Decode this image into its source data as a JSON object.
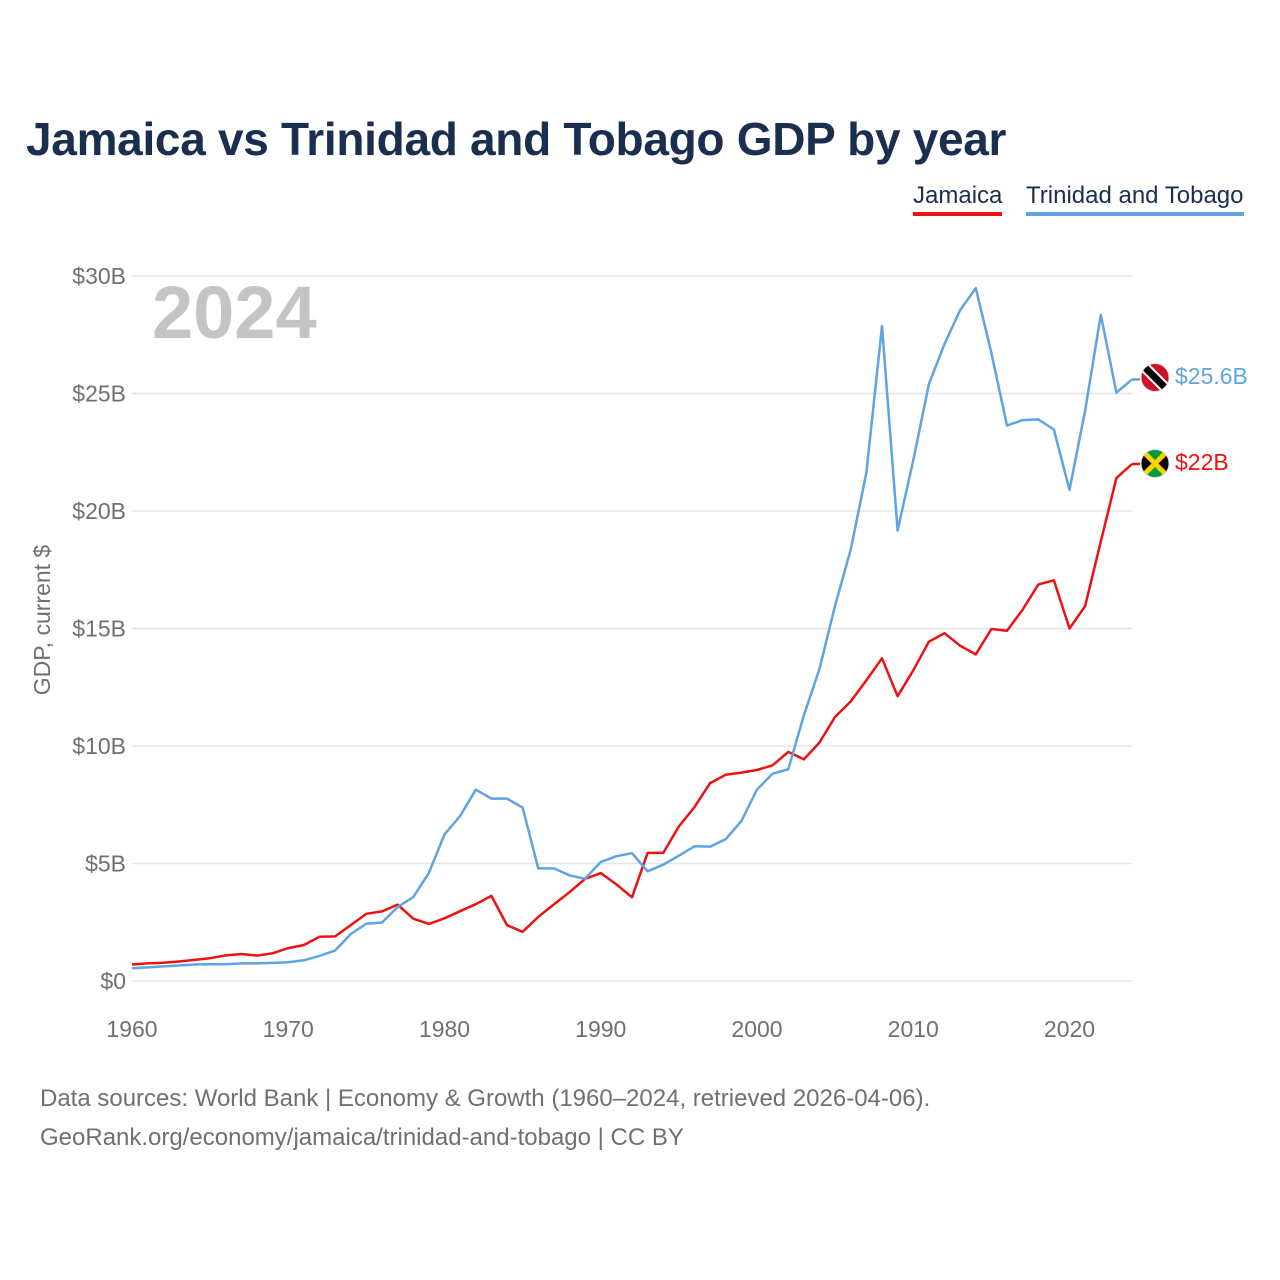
{
  "title": "Jamaica vs Trinidad and Tobago GDP by year",
  "legend": {
    "jamaica": "Jamaica",
    "trinidad": "Trinidad and Tobago"
  },
  "source": {
    "line1": "Data sources: World Bank | Economy & Growth (1960–2024, retrieved 2026-04-06).",
    "line2": "GeoRank.org/economy/jamaica/trinidad-and-tobago | CC BY"
  },
  "chart_data": {
    "type": "line",
    "title": "Jamaica vs Trinidad and Tobago GDP by year",
    "ylabel": "GDP, current $",
    "xlabel": "",
    "xlim": [
      1960,
      2024
    ],
    "ylim": [
      0,
      30
    ],
    "year_label": "2024",
    "x_ticks": [
      1960,
      1970,
      1980,
      1990,
      2000,
      2010,
      2020
    ],
    "x_tick_labels": [
      "1960",
      "1970",
      "1980",
      "1990",
      "2000",
      "2010",
      "2020"
    ],
    "y_ticks": [
      0,
      5,
      10,
      15,
      20,
      25,
      30
    ],
    "y_tick_labels": [
      "$0",
      "$5B",
      "$10B",
      "$15B",
      "$20B",
      "$25B",
      "$30B"
    ],
    "grid": true,
    "legend_position": "top-right",
    "years": [
      1960,
      1961,
      1962,
      1963,
      1964,
      1965,
      1966,
      1967,
      1968,
      1969,
      1970,
      1971,
      1972,
      1973,
      1974,
      1975,
      1976,
      1977,
      1978,
      1979,
      1980,
      1981,
      1982,
      1983,
      1984,
      1985,
      1986,
      1987,
      1988,
      1989,
      1990,
      1991,
      1992,
      1993,
      1994,
      1995,
      1996,
      1997,
      1998,
      1999,
      2000,
      2001,
      2002,
      2003,
      2004,
      2005,
      2006,
      2007,
      2008,
      2009,
      2010,
      2011,
      2012,
      2013,
      2014,
      2015,
      2016,
      2017,
      2018,
      2019,
      2020,
      2021,
      2022,
      2023,
      2024
    ],
    "series": [
      {
        "name": "Jamaica",
        "color": "#ee1111",
        "end_label": "$22B",
        "flag": "jamaica",
        "values": [
          0.7,
          0.75,
          0.78,
          0.83,
          0.9,
          0.97,
          1.09,
          1.15,
          1.08,
          1.18,
          1.4,
          1.53,
          1.88,
          1.9,
          2.38,
          2.86,
          2.96,
          3.25,
          2.65,
          2.43,
          2.67,
          2.97,
          3.27,
          3.62,
          2.38,
          2.09,
          2.73,
          3.26,
          3.78,
          4.35,
          4.59,
          4.11,
          3.56,
          5.45,
          5.45,
          6.58,
          7.4,
          8.42,
          8.78,
          8.87,
          8.98,
          9.18,
          9.75,
          9.43,
          10.15,
          11.24,
          11.9,
          12.8,
          13.73,
          12.12,
          13.22,
          14.44,
          14.8,
          14.27,
          13.9,
          14.98,
          14.9,
          15.8,
          16.87,
          17.05,
          15.0,
          15.95,
          18.7,
          21.4,
          22.0
        ]
      },
      {
        "name": "Trinidad and Tobago",
        "color": "#5fa4e0",
        "end_label": "$25.6B",
        "flag": "trinidad",
        "values": [
          0.54,
          0.58,
          0.62,
          0.66,
          0.7,
          0.72,
          0.71,
          0.75,
          0.75,
          0.77,
          0.8,
          0.88,
          1.07,
          1.3,
          2.0,
          2.44,
          2.49,
          3.15,
          3.57,
          4.6,
          6.24,
          7.02,
          8.14,
          7.76,
          7.76,
          7.38,
          4.79,
          4.79,
          4.5,
          4.35,
          5.07,
          5.31,
          5.44,
          4.67,
          4.95,
          5.33,
          5.73,
          5.72,
          6.04,
          6.81,
          8.15,
          8.82,
          9.01,
          11.31,
          13.28,
          15.98,
          18.37,
          21.64,
          27.87,
          19.17,
          22.16,
          25.4,
          27.1,
          28.55,
          29.48,
          26.72,
          23.64,
          23.87,
          23.9,
          23.47,
          20.9,
          24.27,
          28.35,
          25.04,
          25.6
        ]
      }
    ]
  }
}
